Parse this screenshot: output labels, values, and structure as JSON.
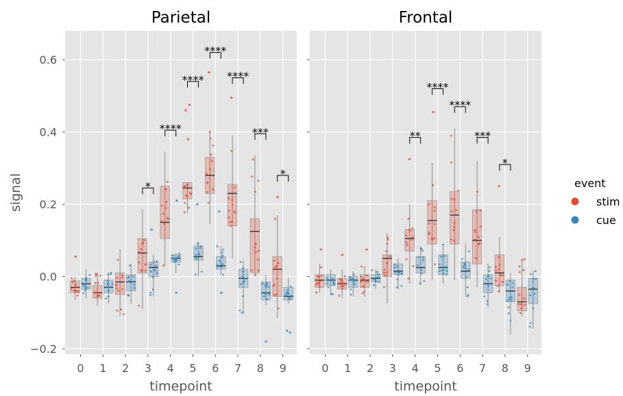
{
  "chart_data": {
    "type": "box",
    "ylabel": "signal",
    "xlabel": "timepoint",
    "categories": [
      "0",
      "1",
      "2",
      "3",
      "4",
      "5",
      "6",
      "7",
      "8",
      "9"
    ],
    "y_ticks": [
      "−0.2",
      "0.0",
      "0.2",
      "0.4",
      "0.6"
    ],
    "y_tick_values": [
      -0.2,
      0.0,
      0.2,
      0.4,
      0.6
    ],
    "ylim": [
      -0.215,
      0.68
    ],
    "grid": true,
    "legend": {
      "title": "event",
      "placement": "right",
      "entries": [
        {
          "name": "stim",
          "color": "#E24A33"
        },
        {
          "name": "cue",
          "color": "#348ABD"
        }
      ]
    },
    "panels": [
      {
        "title": "Parietal",
        "series": [
          {
            "name": "stim",
            "boxes": [
              {
                "whislo": -0.065,
                "q1": -0.045,
                "med": -0.03,
                "q3": -0.012,
                "whishi": 0.0
              },
              {
                "whislo": -0.08,
                "q1": -0.06,
                "med": -0.045,
                "q3": -0.025,
                "whishi": 0.01
              },
              {
                "whislo": -0.11,
                "q1": -0.05,
                "med": -0.015,
                "q3": 0.01,
                "whishi": 0.075
              },
              {
                "whislo": -0.09,
                "q1": 0.01,
                "med": 0.065,
                "q3": 0.105,
                "whishi": 0.185
              },
              {
                "whislo": 0.03,
                "q1": 0.105,
                "med": 0.15,
                "q3": 0.25,
                "whishi": 0.345
              },
              {
                "whislo": 0.175,
                "q1": 0.215,
                "med": 0.245,
                "q3": 0.26,
                "whishi": 0.26
              },
              {
                "whislo": 0.145,
                "q1": 0.23,
                "med": 0.28,
                "q3": 0.33,
                "whishi": 0.405
              },
              {
                "whislo": 0.05,
                "q1": 0.14,
                "med": 0.23,
                "q3": 0.255,
                "whishi": 0.39
              },
              {
                "whislo": 0.0,
                "q1": 0.01,
                "med": 0.125,
                "q3": 0.16,
                "whishi": 0.335
              },
              {
                "whislo": -0.115,
                "q1": -0.055,
                "med": 0.02,
                "q3": 0.055,
                "whishi": 0.17
              }
            ],
            "outliers": [
              [
                0.055
              ],
              [],
              [],
              [],
              [],
              [
                0.475,
                0.46,
                0.38
              ],
              [
                0.565
              ],
              [
                0.495
              ],
              [],
              [
                0.22
              ]
            ]
          },
          {
            "name": "cue",
            "boxes": [
              {
                "whislo": -0.06,
                "q1": -0.035,
                "med": -0.02,
                "q3": -0.005,
                "whishi": 0.02
              },
              {
                "whislo": -0.075,
                "q1": -0.045,
                "med": -0.03,
                "q3": -0.01,
                "whishi": 0.01
              },
              {
                "whislo": -0.075,
                "q1": -0.04,
                "med": -0.015,
                "q3": 0.005,
                "whishi": 0.035
              },
              {
                "whislo": -0.055,
                "q1": 0.0,
                "med": 0.025,
                "q3": 0.04,
                "whishi": 0.06
              },
              {
                "whislo": 0.01,
                "q1": 0.04,
                "med": 0.05,
                "q3": 0.06,
                "whishi": 0.065
              },
              {
                "whislo": 0.0,
                "q1": 0.045,
                "med": 0.055,
                "q3": 0.085,
                "whishi": 0.095
              },
              {
                "whislo": 0.005,
                "q1": 0.02,
                "med": 0.03,
                "q3": 0.055,
                "whishi": 0.085
              },
              {
                "whislo": -0.105,
                "q1": -0.03,
                "med": -0.005,
                "q3": 0.02,
                "whishi": 0.045
              },
              {
                "whislo": -0.08,
                "q1": -0.065,
                "med": -0.045,
                "q3": -0.015,
                "whishi": 0.005
              },
              {
                "whislo": -0.075,
                "q1": -0.065,
                "med": -0.055,
                "q3": -0.03,
                "whishi": -0.005
              }
            ],
            "outliers": [
              [],
              [],
              [],
              [
                0.13
              ],
              [
                0.21,
                -0.045
              ],
              [
                0.2
              ],
              [
                0.18,
                -0.045
              ],
              [],
              [
                -0.18
              ],
              [
                -0.15,
                -0.155
              ]
            ]
          }
        ],
        "annotations": [
          {
            "timepoint": "3",
            "label": "*",
            "y": 0.245
          },
          {
            "timepoint": "4",
            "label": "****",
            "y": 0.405
          },
          {
            "timepoint": "5",
            "label": "****",
            "y": 0.54
          },
          {
            "timepoint": "6",
            "label": "****",
            "y": 0.62
          },
          {
            "timepoint": "7",
            "label": "****",
            "y": 0.55
          },
          {
            "timepoint": "8",
            "label": "***",
            "y": 0.395
          },
          {
            "timepoint": "9",
            "label": "*",
            "y": 0.28
          }
        ]
      },
      {
        "title": "Frontal",
        "series": [
          {
            "name": "stim",
            "boxes": [
              {
                "whislo": -0.045,
                "q1": -0.03,
                "med": -0.01,
                "q3": 0.005,
                "whishi": 0.035
              },
              {
                "whislo": -0.06,
                "q1": -0.035,
                "med": -0.02,
                "q3": -0.005,
                "whishi": 0.02
              },
              {
                "whislo": -0.055,
                "q1": -0.03,
                "med": -0.01,
                "q3": 0.005,
                "whishi": 0.03
              },
              {
                "whislo": -0.075,
                "q1": 0.0,
                "med": 0.05,
                "q3": 0.06,
                "whishi": 0.12
              },
              {
                "whislo": -0.02,
                "q1": 0.07,
                "med": 0.105,
                "q3": 0.13,
                "whishi": 0.2
              },
              {
                "whislo": -0.01,
                "q1": 0.09,
                "med": 0.155,
                "q3": 0.21,
                "whishi": 0.315
              },
              {
                "whislo": -0.01,
                "q1": 0.09,
                "med": 0.17,
                "q3": 0.235,
                "whishi": 0.41
              },
              {
                "whislo": -0.03,
                "q1": 0.035,
                "med": 0.1,
                "q3": 0.185,
                "whishi": 0.32
              },
              {
                "whislo": -0.045,
                "q1": -0.025,
                "med": 0.01,
                "q3": 0.06,
                "whishi": 0.11
              },
              {
                "whislo": -0.11,
                "q1": -0.095,
                "med": -0.07,
                "q3": -0.03,
                "whishi": 0.05
              }
            ],
            "outliers": [
              [
                0.075
              ],
              [
                0.06
              ],
              [
                0.075
              ],
              [],
              [
                0.325
              ],
              [
                0.455
              ],
              [],
              [],
              [
                0.25
              ],
              []
            ]
          },
          {
            "name": "cue",
            "boxes": [
              {
                "whislo": -0.05,
                "q1": -0.025,
                "med": -0.01,
                "q3": 0.005,
                "whishi": 0.02
              },
              {
                "whislo": -0.055,
                "q1": -0.03,
                "med": -0.01,
                "q3": 0.0,
                "whishi": 0.015
              },
              {
                "whislo": -0.035,
                "q1": -0.015,
                "med": -0.005,
                "q3": 0.005,
                "whishi": 0.02
              },
              {
                "whislo": -0.035,
                "q1": 0.005,
                "med": 0.015,
                "q3": 0.035,
                "whishi": 0.05
              },
              {
                "whislo": -0.025,
                "q1": 0.01,
                "med": 0.025,
                "q3": 0.055,
                "whishi": 0.085
              },
              {
                "whislo": -0.02,
                "q1": 0.005,
                "med": 0.025,
                "q3": 0.06,
                "whishi": 0.09
              },
              {
                "whislo": -0.055,
                "q1": -0.005,
                "med": 0.015,
                "q3": 0.04,
                "whishi": 0.09
              },
              {
                "whislo": -0.085,
                "q1": -0.045,
                "med": -0.02,
                "q3": 0.005,
                "whishi": 0.035
              },
              {
                "whislo": -0.16,
                "q1": -0.07,
                "med": -0.04,
                "q3": -0.01,
                "whishi": 0.01
              },
              {
                "whislo": -0.145,
                "q1": -0.075,
                "med": -0.035,
                "q3": -0.005,
                "whishi": 0.015
              }
            ],
            "outliers": [
              [],
              [],
              [],
              [],
              [],
              [],
              [],
              [],
              [],
              []
            ]
          }
        ],
        "annotations": [
          {
            "timepoint": "4",
            "label": "**",
            "y": 0.385
          },
          {
            "timepoint": "5",
            "label": "****",
            "y": 0.52
          },
          {
            "timepoint": "6",
            "label": "****",
            "y": 0.47
          },
          {
            "timepoint": "7",
            "label": "***",
            "y": 0.385
          },
          {
            "timepoint": "8",
            "label": "*",
            "y": 0.31
          }
        ]
      }
    ]
  }
}
